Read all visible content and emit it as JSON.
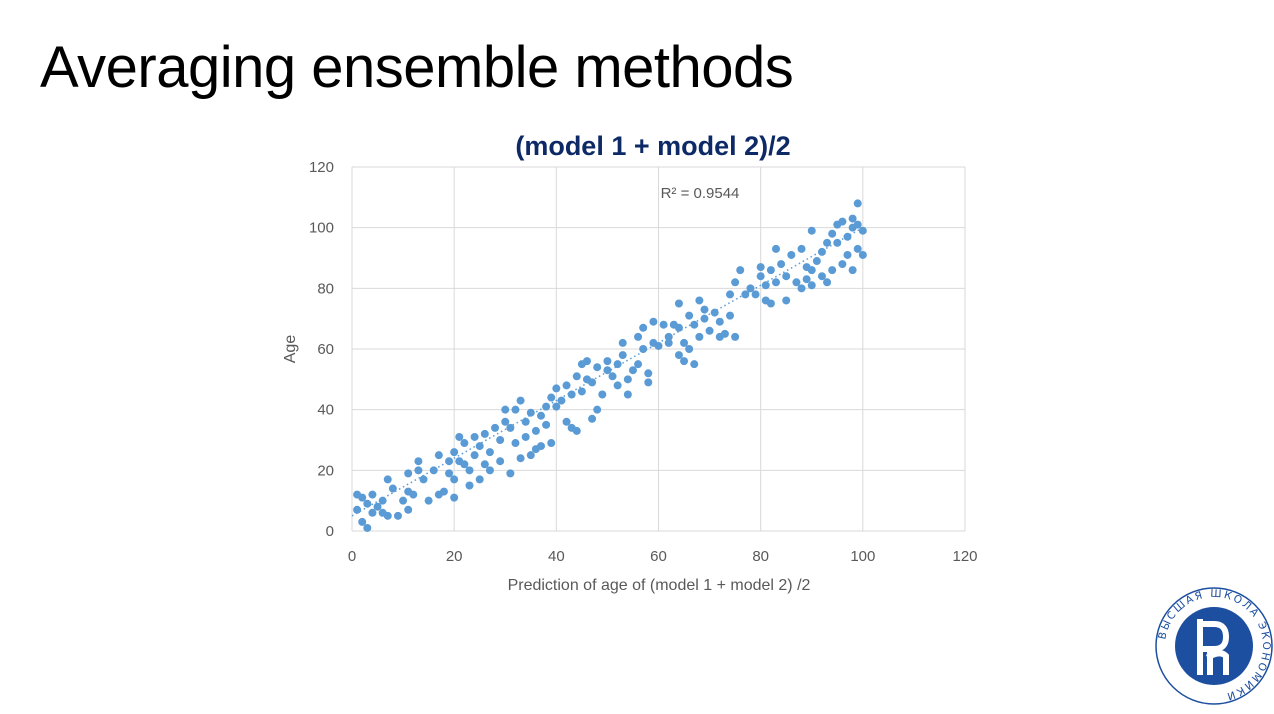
{
  "slide": {
    "title": "Averaging ensemble methods"
  },
  "logo": {
    "text": "ВЫСШАЯ ШКОЛА ЭКОНОМИКИ"
  },
  "colors": {
    "title": "#0d2a66",
    "point": "#5b9bd5",
    "grid": "#d9d9d9",
    "logo": "#1d4fa0"
  },
  "chart_data": {
    "type": "scatter",
    "title": "(model 1 + model 2)/2",
    "xlabel": "Prediction of age of (model 1 + model 2) /2",
    "ylabel": "Age",
    "xlim": [
      0,
      120
    ],
    "ylim": [
      0,
      120
    ],
    "xticks": [
      0,
      20,
      40,
      60,
      80,
      100,
      120
    ],
    "yticks": [
      0,
      20,
      40,
      60,
      80,
      100,
      120
    ],
    "grid": true,
    "annotation": "R² = 0.9544",
    "trendline": {
      "style": "dotted",
      "from": [
        0,
        5
      ],
      "to": [
        100,
        100
      ]
    },
    "series": [
      {
        "points": [
          [
            1,
            7
          ],
          [
            1,
            12
          ],
          [
            2,
            11
          ],
          [
            2,
            3
          ],
          [
            3,
            1
          ],
          [
            3,
            9
          ],
          [
            4,
            6
          ],
          [
            4,
            12
          ],
          [
            5,
            8
          ],
          [
            6,
            10
          ],
          [
            6,
            6
          ],
          [
            7,
            17
          ],
          [
            7,
            5
          ],
          [
            8,
            14
          ],
          [
            9,
            5
          ],
          [
            10,
            10
          ],
          [
            11,
            13
          ],
          [
            11,
            19
          ],
          [
            11,
            7
          ],
          [
            12,
            12
          ],
          [
            13,
            20
          ],
          [
            13,
            23
          ],
          [
            14,
            17
          ],
          [
            15,
            10
          ],
          [
            16,
            20
          ],
          [
            17,
            12
          ],
          [
            17,
            25
          ],
          [
            18,
            13
          ],
          [
            19,
            23
          ],
          [
            19,
            19
          ],
          [
            20,
            17
          ],
          [
            20,
            11
          ],
          [
            20,
            26
          ],
          [
            21,
            31
          ],
          [
            21,
            23
          ],
          [
            22,
            22
          ],
          [
            22,
            29
          ],
          [
            23,
            15
          ],
          [
            23,
            20
          ],
          [
            24,
            25
          ],
          [
            24,
            31
          ],
          [
            25,
            17
          ],
          [
            25,
            28
          ],
          [
            26,
            22
          ],
          [
            26,
            32
          ],
          [
            27,
            20
          ],
          [
            27,
            26
          ],
          [
            28,
            34
          ],
          [
            29,
            30
          ],
          [
            29,
            23
          ],
          [
            30,
            36
          ],
          [
            30,
            40
          ],
          [
            31,
            19
          ],
          [
            31,
            34
          ],
          [
            32,
            40
          ],
          [
            32,
            29
          ],
          [
            33,
            43
          ],
          [
            33,
            24
          ],
          [
            34,
            36
          ],
          [
            34,
            31
          ],
          [
            35,
            39
          ],
          [
            35,
            25
          ],
          [
            36,
            27
          ],
          [
            36,
            33
          ],
          [
            37,
            38
          ],
          [
            37,
            28
          ],
          [
            38,
            41
          ],
          [
            38,
            35
          ],
          [
            39,
            29
          ],
          [
            39,
            44
          ],
          [
            40,
            41
          ],
          [
            40,
            47
          ],
          [
            41,
            43
          ],
          [
            42,
            36
          ],
          [
            42,
            48
          ],
          [
            43,
            45
          ],
          [
            43,
            34
          ],
          [
            44,
            51
          ],
          [
            44,
            33
          ],
          [
            45,
            55
          ],
          [
            45,
            46
          ],
          [
            46,
            50
          ],
          [
            46,
            56
          ],
          [
            47,
            37
          ],
          [
            47,
            49
          ],
          [
            48,
            40
          ],
          [
            48,
            54
          ],
          [
            49,
            45
          ],
          [
            50,
            53
          ],
          [
            50,
            56
          ],
          [
            51,
            51
          ],
          [
            52,
            55
          ],
          [
            52,
            48
          ],
          [
            53,
            58
          ],
          [
            53,
            62
          ],
          [
            54,
            45
          ],
          [
            54,
            50
          ],
          [
            55,
            53
          ],
          [
            56,
            64
          ],
          [
            56,
            55
          ],
          [
            57,
            60
          ],
          [
            57,
            67
          ],
          [
            58,
            52
          ],
          [
            58,
            49
          ],
          [
            59,
            62
          ],
          [
            59,
            69
          ],
          [
            60,
            61
          ],
          [
            61,
            68
          ],
          [
            62,
            62
          ],
          [
            62,
            64
          ],
          [
            63,
            68
          ],
          [
            64,
            58
          ],
          [
            64,
            75
          ],
          [
            64,
            67
          ],
          [
            65,
            56
          ],
          [
            65,
            62
          ],
          [
            66,
            60
          ],
          [
            66,
            71
          ],
          [
            67,
            55
          ],
          [
            67,
            68
          ],
          [
            68,
            76
          ],
          [
            68,
            64
          ],
          [
            69,
            70
          ],
          [
            69,
            73
          ],
          [
            70,
            66
          ],
          [
            71,
            72
          ],
          [
            72,
            64
          ],
          [
            72,
            69
          ],
          [
            73,
            65
          ],
          [
            74,
            71
          ],
          [
            74,
            78
          ],
          [
            75,
            64
          ],
          [
            75,
            82
          ],
          [
            76,
            86
          ],
          [
            77,
            78
          ],
          [
            78,
            80
          ],
          [
            79,
            78
          ],
          [
            80,
            84
          ],
          [
            80,
            87
          ],
          [
            81,
            81
          ],
          [
            81,
            76
          ],
          [
            82,
            75
          ],
          [
            82,
            86
          ],
          [
            83,
            82
          ],
          [
            83,
            93
          ],
          [
            84,
            88
          ],
          [
            85,
            76
          ],
          [
            85,
            84
          ],
          [
            86,
            91
          ],
          [
            87,
            82
          ],
          [
            88,
            93
          ],
          [
            88,
            80
          ],
          [
            89,
            87
          ],
          [
            89,
            83
          ],
          [
            90,
            99
          ],
          [
            90,
            86
          ],
          [
            90,
            81
          ],
          [
            91,
            89
          ],
          [
            92,
            92
          ],
          [
            92,
            84
          ],
          [
            93,
            95
          ],
          [
            93,
            82
          ],
          [
            94,
            86
          ],
          [
            94,
            98
          ],
          [
            95,
            101
          ],
          [
            95,
            95
          ],
          [
            96,
            88
          ],
          [
            96,
            102
          ],
          [
            97,
            97
          ],
          [
            97,
            91
          ],
          [
            98,
            103
          ],
          [
            98,
            86
          ],
          [
            98,
            100
          ],
          [
            99,
            108
          ],
          [
            99,
            93
          ],
          [
            99,
            101
          ],
          [
            100,
            99
          ],
          [
            100,
            91
          ]
        ]
      }
    ]
  }
}
